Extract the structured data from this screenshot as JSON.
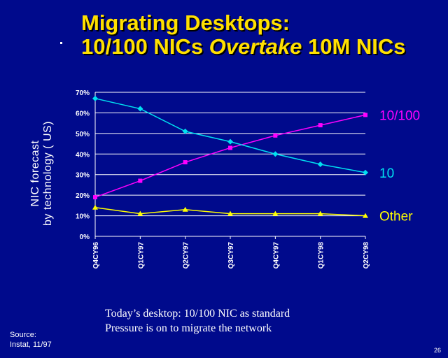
{
  "slide": {
    "title_line1": "Migrating Desktops:",
    "title_line2_pre": "10/100 NICs ",
    "title_line2_em": "Overtake",
    "title_line2_post": " 10M NICs",
    "caption_line1": "Today’s desktop: 10/100 NIC as standard",
    "caption_line2": "Pressure is on to migrate the network",
    "source_line1": "Source:",
    "source_line2": "Instat, 11/97",
    "page_number": "26"
  },
  "chart_data": {
    "type": "line",
    "ylabel_line1": "NIC forecast",
    "ylabel_line2": "by technology ( US)",
    "categories": [
      "Q4CY96",
      "Q1CY97",
      "Q2CY97",
      "Q3CY97",
      "Q4CY97",
      "Q1CY98",
      "Q2CY98"
    ],
    "yticks": [
      "0%",
      "10%",
      "20%",
      "30%",
      "40%",
      "50%",
      "60%",
      "70%"
    ],
    "ylim": [
      0,
      70
    ],
    "grid": true,
    "series": [
      {
        "name": "10/100",
        "color": "#ff00ff",
        "marker": "square",
        "values": [
          19,
          27,
          36,
          43,
          49,
          54,
          59
        ]
      },
      {
        "name": "10",
        "color": "#00e0f0",
        "marker": "diamond",
        "values": [
          67,
          62,
          51,
          46,
          40,
          35,
          31
        ]
      },
      {
        "name": "Other",
        "color": "#ffff00",
        "marker": "triangle",
        "values": [
          14,
          11,
          13,
          11,
          11,
          11,
          10
        ]
      }
    ]
  }
}
